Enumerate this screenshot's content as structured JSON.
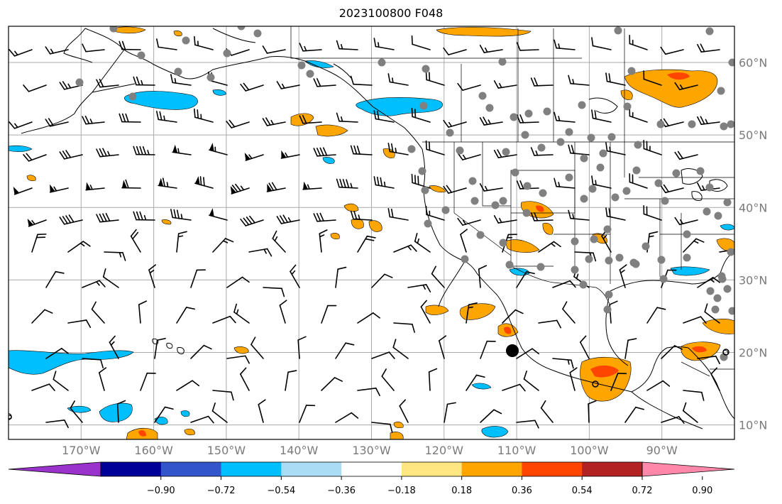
{
  "title": "2023100800 F048",
  "map": {
    "lon_range": [
      -180,
      -80
    ],
    "lat_range": [
      8,
      65
    ],
    "lat_labels": [
      {
        "lat": 60,
        "label": "60°N"
      },
      {
        "lat": 50,
        "label": "50°N"
      },
      {
        "lat": 40,
        "label": "40°N"
      },
      {
        "lat": 30,
        "label": "30°N"
      },
      {
        "lat": 20,
        "label": "20°N"
      },
      {
        "lat": 10,
        "label": "10°N"
      }
    ],
    "lon_labels": [
      {
        "lon": -170,
        "label": "170°W"
      },
      {
        "lon": -160,
        "label": "160°W"
      },
      {
        "lon": -150,
        "label": "150°W"
      },
      {
        "lon": -140,
        "label": "140°W"
      },
      {
        "lon": -130,
        "label": "130°W"
      },
      {
        "lon": -120,
        "label": "120°W"
      },
      {
        "lon": -110,
        "label": "110°W"
      },
      {
        "lon": -100,
        "label": "100°W"
      },
      {
        "lon": -90,
        "label": "90°W"
      }
    ],
    "colors": {
      "land_lines": "#000000",
      "grid": "#aaaaaa",
      "station": "#808080",
      "neg_shade": "#00bfff",
      "pos_shade": "#ffa500",
      "pos_strong": "#ff4500"
    }
  },
  "colorbar": {
    "colors": [
      "#9933cc",
      "#000099",
      "#3355cc",
      "#00bfff",
      "#aaddf5",
      "#ffffff",
      "#ffe680",
      "#ffa500",
      "#ff4500",
      "#b22222",
      "#ff88aa"
    ],
    "end_colors": {
      "low": "#9933cc",
      "high": "#ff88aa"
    },
    "ticks": [
      "−0.90",
      "−0.72",
      "−0.54",
      "−0.36",
      "−0.18",
      "0.18",
      "0.36",
      "0.54",
      "0.72",
      "0.90"
    ]
  }
}
